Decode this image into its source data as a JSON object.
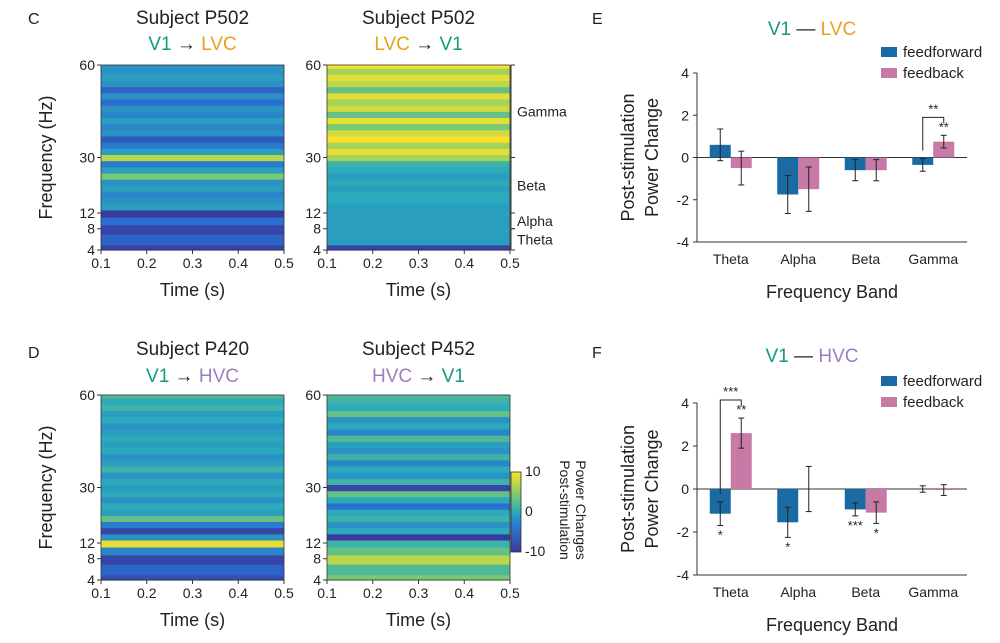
{
  "colors": {
    "v1": "#139a7c",
    "lvc": "#e6a31c",
    "hvc": "#9a80c0",
    "feedforward": "#1a6aa3",
    "feedback": "#c87aa6",
    "heat_low": "#3a3a9e",
    "heat_mid": "#2aaaba",
    "heat_high": "#fde22a"
  },
  "panels": {
    "C": {
      "letter": "C",
      "heatmaps": [
        {
          "subject": "Subject P502",
          "from": "V1",
          "to": "LVC",
          "from_color": "v1",
          "to_color": "lvc",
          "bands": [
            [
              4,
              -9
            ],
            [
              6,
              -6
            ],
            [
              8,
              -9
            ],
            [
              10,
              -5
            ],
            [
              12,
              -10
            ],
            [
              14,
              -1
            ],
            [
              16,
              -2
            ],
            [
              18,
              -3
            ],
            [
              20,
              -1
            ],
            [
              22,
              -2
            ],
            [
              24,
              4
            ],
            [
              26,
              -1
            ],
            [
              28,
              -4
            ],
            [
              30,
              7
            ],
            [
              32,
              -1
            ],
            [
              34,
              -4
            ],
            [
              36,
              -7
            ],
            [
              38,
              -2
            ],
            [
              40,
              -3
            ],
            [
              42,
              -1
            ],
            [
              44,
              -3
            ],
            [
              46,
              -2
            ],
            [
              48,
              -5
            ],
            [
              50,
              -2
            ],
            [
              52,
              -6
            ],
            [
              54,
              -2
            ],
            [
              56,
              -1
            ],
            [
              58,
              -2
            ],
            [
              60,
              -2
            ]
          ]
        },
        {
          "subject": "Subject P502",
          "from": "LVC",
          "to": "V1",
          "from_color": "lvc",
          "to_color": "v1",
          "bands": [
            [
              4,
              -9
            ],
            [
              6,
              -1
            ],
            [
              8,
              -1
            ],
            [
              10,
              -1
            ],
            [
              12,
              -1
            ],
            [
              14,
              -1
            ],
            [
              16,
              0
            ],
            [
              18,
              0
            ],
            [
              20,
              -1
            ],
            [
              22,
              0
            ],
            [
              24,
              -1
            ],
            [
              26,
              0
            ],
            [
              28,
              1
            ],
            [
              30,
              6
            ],
            [
              32,
              9
            ],
            [
              34,
              6
            ],
            [
              36,
              10
            ],
            [
              38,
              8
            ],
            [
              40,
              4
            ],
            [
              42,
              9
            ],
            [
              44,
              3
            ],
            [
              46,
              8
            ],
            [
              48,
              6
            ],
            [
              50,
              9
            ],
            [
              52,
              3
            ],
            [
              54,
              7
            ],
            [
              56,
              9
            ],
            [
              58,
              6
            ],
            [
              60,
              10
            ]
          ]
        }
      ],
      "band_labels": [
        {
          "name": "Gamma",
          "low": 30,
          "high": 60
        },
        {
          "name": "Beta",
          "low": 12,
          "high": 30
        },
        {
          "name": "Alpha",
          "low": 8,
          "high": 12
        },
        {
          "name": "Theta",
          "low": 4,
          "high": 8
        }
      ]
    },
    "D": {
      "letter": "D",
      "heatmaps": [
        {
          "subject": "Subject P420",
          "from": "V1",
          "to": "HVC",
          "from_color": "v1",
          "to_color": "hvc",
          "bands": [
            [
              4,
              -8
            ],
            [
              6,
              -6
            ],
            [
              8,
              -9
            ],
            [
              10,
              -3
            ],
            [
              12,
              9
            ],
            [
              14,
              -2
            ],
            [
              16,
              -9
            ],
            [
              18,
              -4
            ],
            [
              20,
              3
            ],
            [
              22,
              -1
            ],
            [
              24,
              0
            ],
            [
              26,
              -2
            ],
            [
              28,
              0
            ],
            [
              30,
              -1
            ],
            [
              32,
              0
            ],
            [
              34,
              -2
            ],
            [
              36,
              1
            ],
            [
              38,
              -1
            ],
            [
              40,
              -2
            ],
            [
              42,
              0
            ],
            [
              44,
              -1
            ],
            [
              46,
              0
            ],
            [
              48,
              -1
            ],
            [
              50,
              -2
            ],
            [
              52,
              0
            ],
            [
              54,
              -1
            ],
            [
              56,
              1
            ],
            [
              58,
              0
            ],
            [
              60,
              2
            ]
          ]
        },
        {
          "subject": "Subject P452",
          "from": "HVC",
          "to": "V1",
          "from_color": "hvc",
          "to_color": "v1",
          "bands": [
            [
              4,
              4
            ],
            [
              6,
              2
            ],
            [
              8,
              7
            ],
            [
              10,
              3
            ],
            [
              12,
              1
            ],
            [
              14,
              -10
            ],
            [
              16,
              0
            ],
            [
              18,
              -2
            ],
            [
              20,
              1
            ],
            [
              22,
              0
            ],
            [
              24,
              -5
            ],
            [
              26,
              0
            ],
            [
              28,
              3
            ],
            [
              30,
              -9
            ],
            [
              32,
              1
            ],
            [
              34,
              -2
            ],
            [
              36,
              0
            ],
            [
              38,
              -3
            ],
            [
              40,
              1
            ],
            [
              42,
              -2
            ],
            [
              44,
              -1
            ],
            [
              46,
              2
            ],
            [
              48,
              -3
            ],
            [
              50,
              0
            ],
            [
              52,
              -2
            ],
            [
              54,
              3
            ],
            [
              56,
              0
            ],
            [
              58,
              1
            ],
            [
              60,
              2
            ]
          ]
        }
      ],
      "colorbar": {
        "ticks": [
          "10",
          "0",
          "-10"
        ],
        "label_line1": "Post-stimulation",
        "label_line2": "Power Changes"
      }
    },
    "heat_axes": {
      "yticks": [
        "60",
        "30",
        "12",
        "8",
        "4"
      ],
      "xticks": [
        "0.1",
        "0.2",
        "0.3",
        "0.4",
        "0.5"
      ],
      "ylabel": "Frequency (Hz)",
      "xlabel": "Time (s)"
    },
    "E": {
      "letter": "E",
      "title_from": "V1",
      "title_dash": "—",
      "title_to": "LVC",
      "title_to_color": "lvc"
    },
    "F": {
      "letter": "F",
      "title_from": "V1",
      "title_dash": "—",
      "title_to": "HVC",
      "title_to_color": "hvc"
    },
    "bar_axes": {
      "yticks": [
        "4",
        "2",
        "0",
        "-2",
        "-4"
      ],
      "ylabel_line1": "Post-stimulation",
      "ylabel_line2": "Power Change",
      "xlabel": "Frequency Band",
      "legend": [
        "feedforward",
        "feedback"
      ]
    },
    "arrow": "→"
  },
  "chart_data": [
    {
      "type": "bar",
      "panel": "E",
      "categories": [
        "Theta",
        "Alpha",
        "Beta",
        "Gamma"
      ],
      "ylim": [
        -4,
        4
      ],
      "series": [
        {
          "name": "feedforward",
          "values": [
            0.6,
            -1.75,
            -0.6,
            -0.35
          ],
          "errors": [
            0.75,
            0.9,
            0.5,
            0.3
          ]
        },
        {
          "name": "feedback",
          "values": [
            -0.5,
            -1.5,
            -0.6,
            0.75
          ],
          "errors": [
            0.8,
            1.05,
            0.5,
            0.3
          ]
        }
      ],
      "annotations": {
        "bracket": {
          "category": "Gamma",
          "label": "**"
        },
        "marks": [
          {
            "series": 1,
            "category": 3,
            "label": "**",
            "pos": "above"
          }
        ]
      }
    },
    {
      "type": "bar",
      "panel": "F",
      "categories": [
        "Theta",
        "Alpha",
        "Beta",
        "Gamma"
      ],
      "ylim": [
        -4,
        4
      ],
      "series": [
        {
          "name": "feedforward",
          "values": [
            -1.15,
            -1.55,
            -0.95,
            0.0
          ],
          "errors": [
            0.55,
            0.7,
            0.3,
            0.15
          ]
        },
        {
          "name": "feedback",
          "values": [
            2.6,
            0.0,
            -1.1,
            -0.05
          ],
          "errors": [
            0.7,
            1.05,
            0.5,
            0.25
          ]
        }
      ],
      "annotations": {
        "bracket": {
          "category": "Theta",
          "label": "***"
        },
        "marks": [
          {
            "series": 0,
            "category": 0,
            "label": "*",
            "pos": "below"
          },
          {
            "series": 1,
            "category": 0,
            "label": "**",
            "pos": "above"
          },
          {
            "series": 0,
            "category": 1,
            "label": "*",
            "pos": "below"
          },
          {
            "series": 0,
            "category": 2,
            "label": "***",
            "pos": "below"
          },
          {
            "series": 1,
            "category": 2,
            "label": "*",
            "pos": "below"
          }
        ]
      }
    }
  ]
}
